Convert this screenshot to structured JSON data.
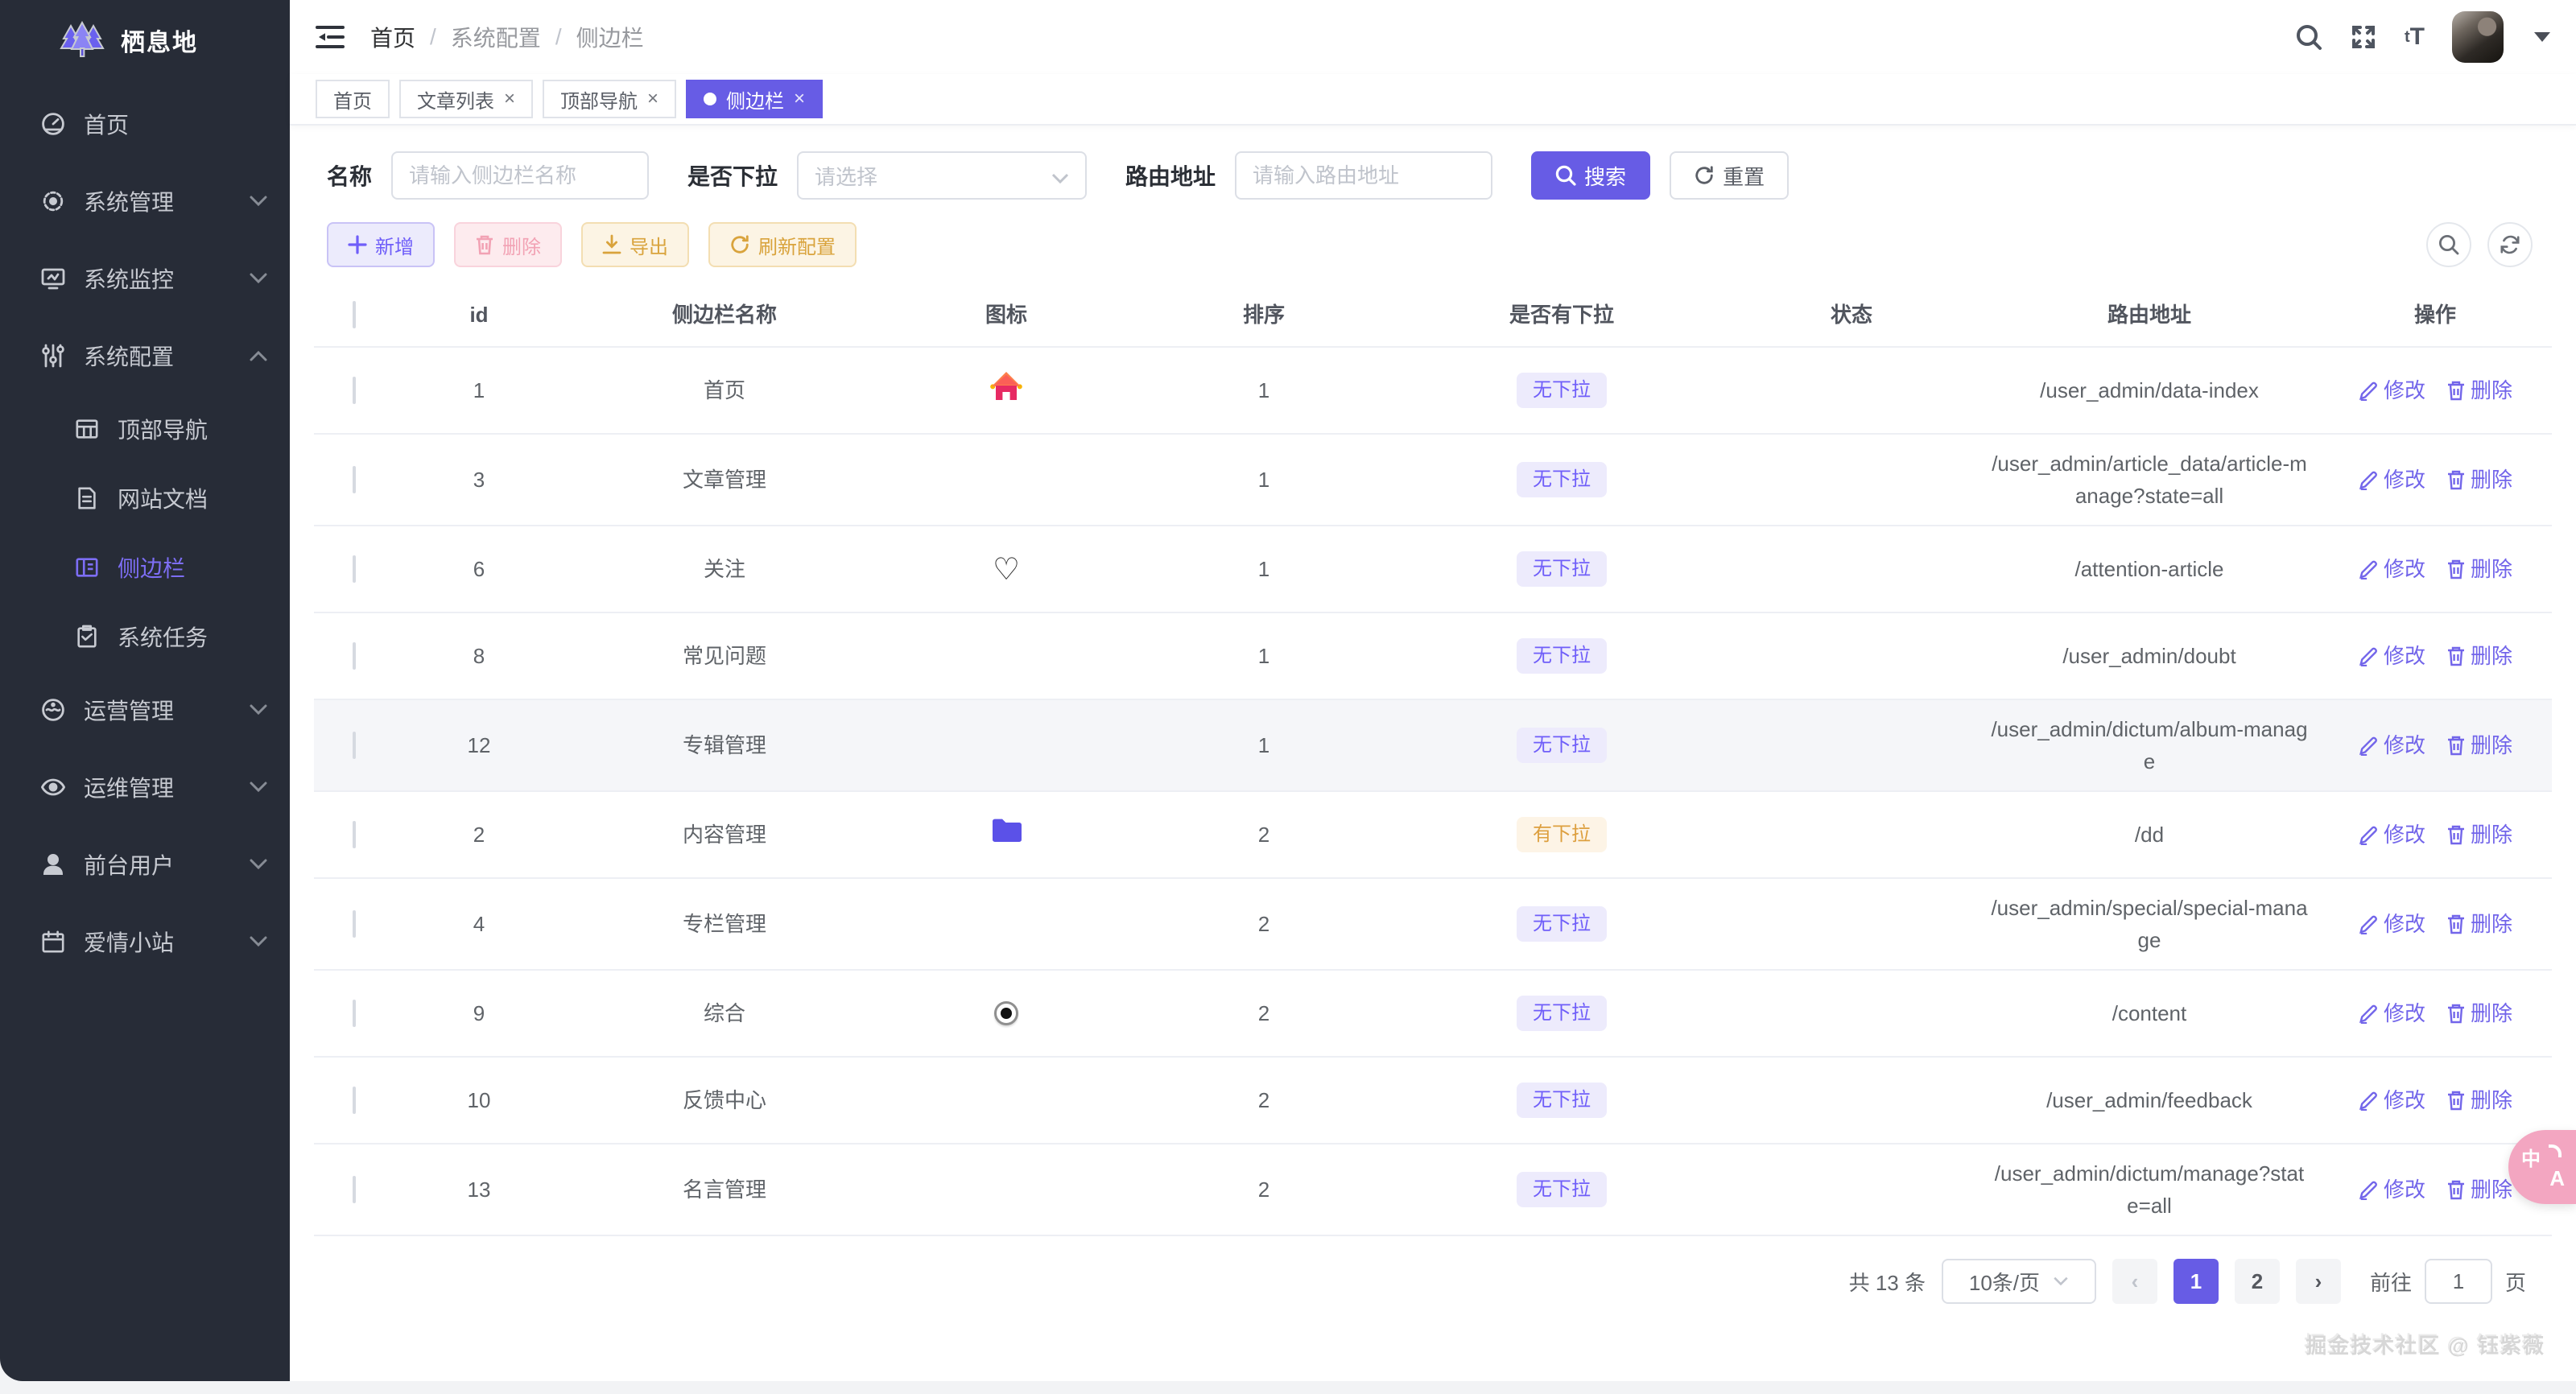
{
  "brand": {
    "name": "栖息地",
    "logo_icon": "trees-icon"
  },
  "sidebar": {
    "items": [
      {
        "key": "home",
        "label": "首页",
        "icon": "dashboard-icon",
        "level": 1
      },
      {
        "key": "system-manage",
        "label": "系统管理",
        "icon": "gear-icon",
        "level": 1,
        "chevron": "down"
      },
      {
        "key": "system-monitor",
        "label": "系统监控",
        "icon": "monitor-icon",
        "level": 1,
        "chevron": "down"
      },
      {
        "key": "system-config",
        "label": "系统配置",
        "icon": "sliders-icon",
        "level": 1,
        "chevron": "up",
        "expanded": true
      },
      {
        "key": "top-nav",
        "label": "顶部导航",
        "icon": "table-icon",
        "level": 2
      },
      {
        "key": "site-docs",
        "label": "网站文档",
        "icon": "document-icon",
        "level": 2
      },
      {
        "key": "sidebar",
        "label": "侧边栏",
        "icon": "sidebar-icon",
        "level": 2,
        "active": true
      },
      {
        "key": "system-tasks",
        "label": "系统任务",
        "icon": "tasks-icon",
        "level": 2
      },
      {
        "key": "operation",
        "label": "运营管理",
        "icon": "operations-icon",
        "level": 1,
        "chevron": "down"
      },
      {
        "key": "maintenance",
        "label": "运维管理",
        "icon": "eye-icon",
        "level": 1,
        "chevron": "down"
      },
      {
        "key": "front-users",
        "label": "前台用户",
        "icon": "user-icon",
        "level": 1,
        "chevron": "down"
      },
      {
        "key": "love-site",
        "label": "爱情小站",
        "icon": "calendar-icon",
        "level": 1,
        "chevron": "down"
      }
    ]
  },
  "header": {
    "breadcrumb": [
      "首页",
      "系统配置",
      "侧边栏"
    ],
    "icons": [
      "menu-fold-icon",
      "search-icon",
      "fullscreen-icon",
      "font-size-icon",
      "avatar",
      "caret-down-icon"
    ],
    "font_size_glyph_small": "t",
    "font_size_glyph_big": "T"
  },
  "tabs": [
    {
      "label": "首页",
      "closable": false,
      "active": false
    },
    {
      "label": "文章列表",
      "closable": true,
      "active": false
    },
    {
      "label": "顶部导航",
      "closable": true,
      "active": false
    },
    {
      "label": "侧边栏",
      "closable": true,
      "active": true
    }
  ],
  "filters": {
    "name_label": "名称",
    "name_placeholder": "请输入侧边栏名称",
    "dropdown_label": "是否下拉",
    "dropdown_placeholder": "请选择",
    "route_label": "路由地址",
    "route_placeholder": "请输入路由地址",
    "search_label": "搜索",
    "reset_label": "重置"
  },
  "toolbar": {
    "add_label": "新增",
    "delete_label": "删除",
    "export_label": "导出",
    "refresh_label": "刷新配置"
  },
  "table": {
    "columns": [
      "id",
      "侧边栏名称",
      "图标",
      "排序",
      "是否有下拉",
      "状态",
      "路由地址",
      "操作"
    ],
    "edit_label": "修改",
    "delete_label": "删除",
    "rows": [
      {
        "id": "1",
        "name": "首页",
        "icon": "home-icon",
        "sort": "1",
        "dropdown": "无下拉",
        "dropdown_type": "info",
        "status": "",
        "route": "/user_admin/data-index"
      },
      {
        "id": "3",
        "name": "文章管理",
        "icon": "",
        "sort": "1",
        "dropdown": "无下拉",
        "dropdown_type": "info",
        "status": "",
        "route": "/user_admin/article_data/article-manage?state=all"
      },
      {
        "id": "6",
        "name": "关注",
        "icon": "heart-icon",
        "sort": "1",
        "dropdown": "无下拉",
        "dropdown_type": "info",
        "status": "",
        "route": "/attention-article"
      },
      {
        "id": "8",
        "name": "常见问题",
        "icon": "",
        "sort": "1",
        "dropdown": "无下拉",
        "dropdown_type": "info",
        "status": "",
        "route": "/user_admin/doubt"
      },
      {
        "id": "12",
        "name": "专辑管理",
        "icon": "",
        "sort": "1",
        "dropdown": "无下拉",
        "dropdown_type": "info",
        "status": "",
        "route": "/user_admin/dictum/album-manage",
        "highlighted": true
      },
      {
        "id": "2",
        "name": "内容管理",
        "icon": "folder-icon",
        "sort": "2",
        "dropdown": "有下拉",
        "dropdown_type": "warn",
        "status": "",
        "route": "/dd"
      },
      {
        "id": "4",
        "name": "专栏管理",
        "icon": "",
        "sort": "2",
        "dropdown": "无下拉",
        "dropdown_type": "info",
        "status": "",
        "route": "/user_admin/special/special-manage"
      },
      {
        "id": "9",
        "name": "综合",
        "icon": "radio-icon",
        "sort": "2",
        "dropdown": "无下拉",
        "dropdown_type": "info",
        "status": "",
        "route": "/content"
      },
      {
        "id": "10",
        "name": "反馈中心",
        "icon": "",
        "sort": "2",
        "dropdown": "无下拉",
        "dropdown_type": "info",
        "status": "",
        "route": "/user_admin/feedback"
      },
      {
        "id": "13",
        "name": "名言管理",
        "icon": "",
        "sort": "2",
        "dropdown": "无下拉",
        "dropdown_type": "info",
        "status": "",
        "route": "/user_admin/dictum/manage?state=all"
      }
    ]
  },
  "pagination": {
    "total_text": "共 13 条",
    "page_size": "10条/页",
    "pages": [
      "1",
      "2"
    ],
    "active_page": "1",
    "prev_glyph": "‹",
    "next_glyph": "›",
    "goto_label": "前往",
    "goto_value": "1",
    "page_suffix": "页"
  },
  "footer": {
    "watermark": "掘金技术社区 @ 钰紫薇"
  },
  "float_widget": {
    "translate_zh": "中",
    "translate_en": "A"
  },
  "colors": {
    "primary": "#675ce5",
    "link_purple": "#7265ea",
    "badge_info_bg": "#edebfc",
    "badge_info_text": "#6f5ef9",
    "badge_warn_bg": "#fdf4e6",
    "badge_warn_text": "#dd9f3e",
    "sidebar_bg": "#272c37",
    "danger_soft": "#f2a2b4",
    "warning_soft": "#d9a33c"
  }
}
